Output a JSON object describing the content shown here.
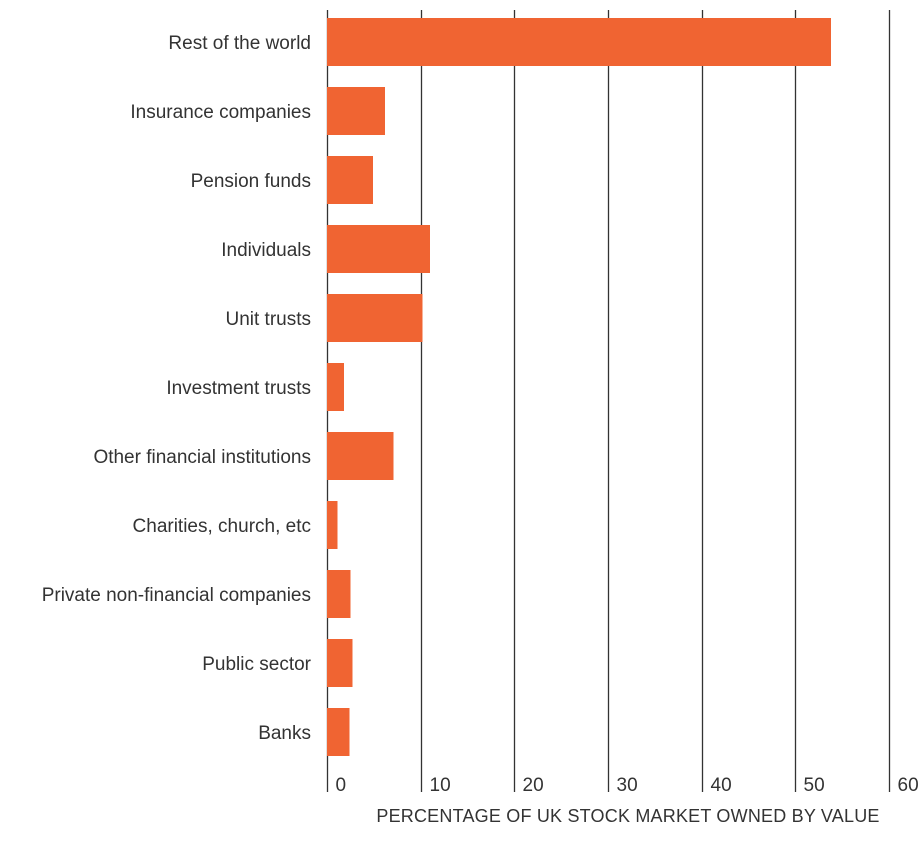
{
  "chart_data": {
    "type": "bar",
    "orientation": "horizontal",
    "categories": [
      "Rest of the world",
      "Insurance companies",
      "Pension funds",
      "Individuals",
      "Unit trusts",
      "Investment trusts",
      "Other financial institutions",
      "Charities, church, etc",
      "Private non-financial companies",
      "Public sector",
      "Banks"
    ],
    "values": [
      53.8,
      6.2,
      4.9,
      11.0,
      10.2,
      1.8,
      7.1,
      1.1,
      2.5,
      2.7,
      2.4
    ],
    "title": "",
    "xlabel": "PERCENTAGE OF UK STOCK MARKET OWNED BY VALUE",
    "ylabel": "",
    "xlim": [
      0,
      60
    ],
    "xticks": [
      "0",
      "10",
      "20",
      "30",
      "40",
      "50",
      "60"
    ],
    "grid": "vertical",
    "legend": "none",
    "bar_color": "#F06432",
    "grid_color": "#333333"
  }
}
